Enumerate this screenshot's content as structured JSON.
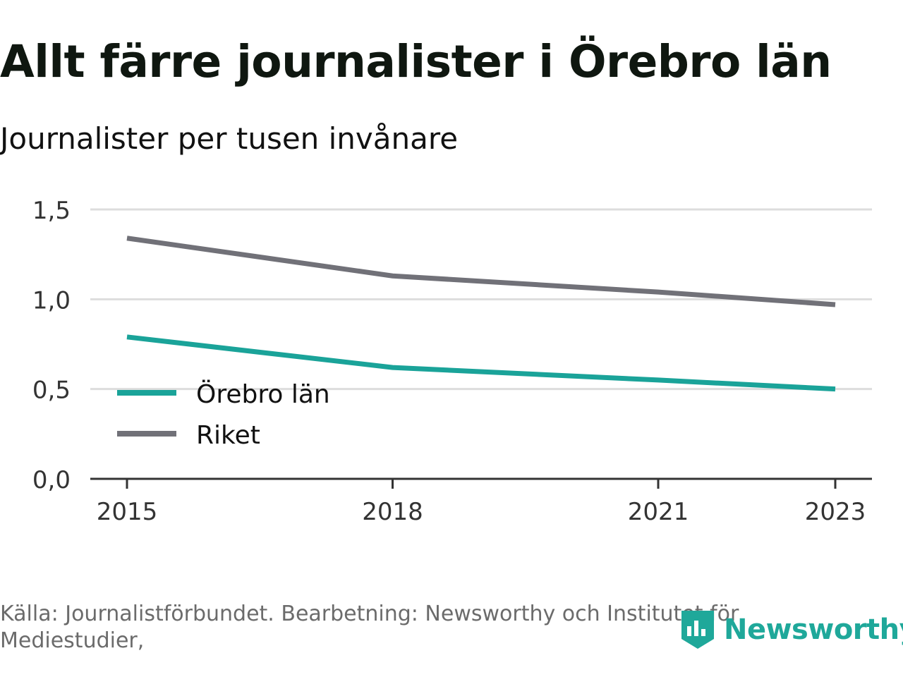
{
  "title": "Allt färre journalister i Örebro län",
  "subtitle": "Journalister per tusen invånare",
  "source": "Källa: Journalistförbundet. Bearbetning: Newsworthy och Institutet för Mediestudier,",
  "brand": {
    "name": "Newsworthy",
    "icon": "newsworthy-logo-icon",
    "color": "#1fa89a"
  },
  "chart_data": {
    "type": "line",
    "title": "Allt färre journalister i Örebro län",
    "ylabel": "Journalister per tusen invånare",
    "xlabel": "",
    "x": [
      2015,
      2018,
      2021,
      2023
    ],
    "x_tick_labels": [
      "2015",
      "2018",
      "2021",
      "2023"
    ],
    "xlim": [
      2015,
      2023
    ],
    "ylim": [
      0,
      1.5
    ],
    "y_ticks": [
      0.0,
      0.5,
      1.0,
      1.5
    ],
    "y_tick_labels": [
      "0,0",
      "0,5",
      "1,0",
      "1,5"
    ],
    "grid": true,
    "legend_position": "lower-left",
    "series": [
      {
        "name": "Örebro län",
        "color": "#1aa399",
        "values": [
          0.79,
          0.62,
          0.55,
          0.5
        ]
      },
      {
        "name": "Riket",
        "color": "#717178",
        "values": [
          1.34,
          1.13,
          1.04,
          0.97
        ]
      }
    ]
  }
}
